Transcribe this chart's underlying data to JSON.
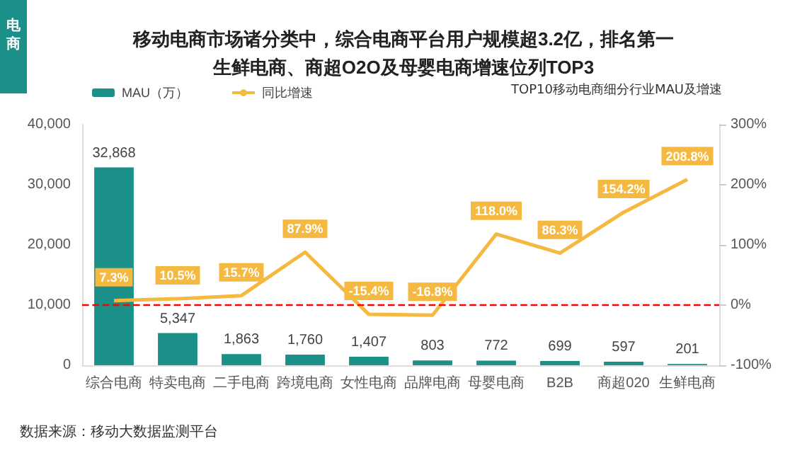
{
  "chart_data": {
    "type": "bar",
    "title": "移动电商市场诸分类中，综合电商平台用户规模超3.2亿，排名第一",
    "subtitle": "生鲜电商、商超O2O及母婴电商增速位列TOP3",
    "annotations": [
      "电商",
      "TOP10移动电商细分行业MAU及增速",
      "数据来源：移动大数据监测平台"
    ],
    "categories": [
      "综合电商",
      "特卖电商",
      "二手电商",
      "跨境电商",
      "女性电商",
      "品牌电商",
      "母婴电商",
      "B2B",
      "商超020",
      "生鲜电商"
    ],
    "series": [
      {
        "name": "MAU（万）",
        "color": "#1a9089",
        "values": [
          32868,
          5347,
          1863,
          1760,
          1407,
          803,
          772,
          699,
          597,
          201
        ],
        "value_labels": [
          "32,868",
          "5,347",
          "1,863",
          "1,760",
          "1,407",
          "803",
          "772",
          "699",
          "597",
          "201"
        ]
      },
      {
        "name": "同比增速",
        "type": "line",
        "axis": "y2",
        "color": "#f5b942",
        "values": [
          7.3,
          10.5,
          15.7,
          87.9,
          -15.4,
          -16.8,
          118.0,
          86.3,
          154.2,
          208.8
        ],
        "value_labels": [
          "7.3%",
          "10.5%",
          "15.7%",
          "87.9%",
          "-15.4%",
          "-16.8%",
          "118.0%",
          "86.3%",
          "154.2%",
          "208.8%"
        ]
      }
    ],
    "ylim": [
      0,
      40000
    ],
    "yticks": [
      0,
      {
        "value": 10000,
        "label": "10,000"
      },
      {
        "value": 20000,
        "label": "20,000"
      },
      {
        "value": 30000,
        "label": "30,000"
      },
      {
        "value": 40000,
        "label": "40,000"
      }
    ],
    "y2lim": [
      -100,
      300
    ],
    "y2ticks": [
      {
        "value": -100,
        "label": "-100%"
      },
      {
        "value": 0,
        "label": "0%"
      },
      {
        "value": 100,
        "label": "100%"
      },
      {
        "value": 200,
        "label": "200%"
      },
      {
        "value": 300,
        "label": "300%"
      }
    ],
    "ref_lines": [
      {
        "axis": "y2",
        "value": 0,
        "color": "#ff0000",
        "line_style": "dashed"
      }
    ],
    "legend": "top left",
    "grid": false,
    "marker": "none"
  }
}
